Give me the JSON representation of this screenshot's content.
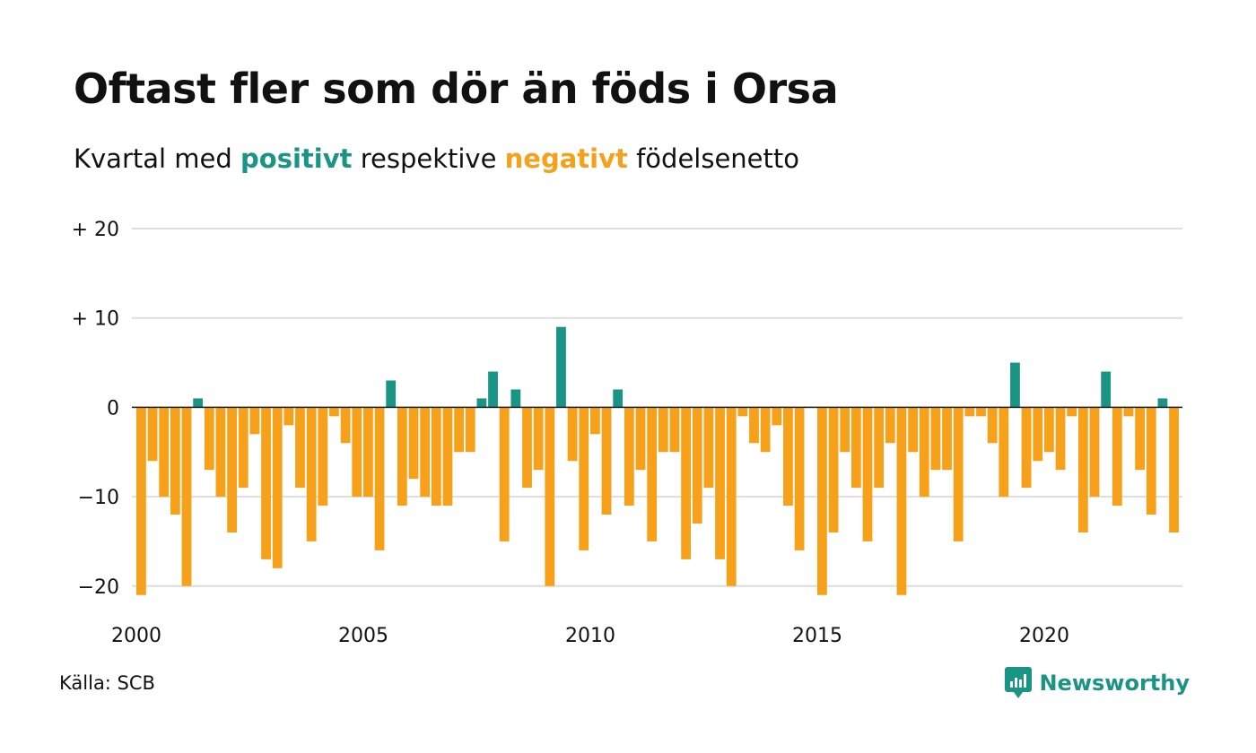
{
  "title": "Oftast fler som dör än föds i Orsa",
  "subtitle": {
    "before": "Kvartal med",
    "positive_word": "positivt",
    "middle": "respektive",
    "negative_word": "negativt",
    "after": "födelsenetto"
  },
  "source": "Källa: SCB",
  "brand": "Newsworthy",
  "colors": {
    "positive": "#1a9485",
    "negative": "#f7a11a",
    "grid": "#dddddd"
  },
  "chart_data": {
    "type": "bar",
    "x_start": 2000,
    "x_end": 2023,
    "x_ticks": [
      {
        "value": 2000,
        "label": "2000"
      },
      {
        "value": 2005,
        "label": "2005"
      },
      {
        "value": 2010,
        "label": "2010"
      },
      {
        "value": 2015,
        "label": "2015"
      },
      {
        "value": 2020,
        "label": "2020"
      }
    ],
    "y_ticks": [
      {
        "value": 20,
        "label": "+ 20"
      },
      {
        "value": 10,
        "label": "+ 10"
      },
      {
        "value": 0,
        "label": "0"
      },
      {
        "value": -10,
        "label": "−10"
      },
      {
        "value": -20,
        "label": "−20"
      }
    ],
    "ylim": [
      -23,
      20
    ],
    "grid": true,
    "series": [
      {
        "values": [
          -21,
          -6,
          -10,
          -12,
          -20,
          1,
          -7,
          -10,
          -14,
          -9,
          -3,
          -17,
          -18,
          -2,
          -9,
          -15,
          -11,
          -1,
          -4,
          -10,
          -10,
          -16,
          3,
          -11,
          -8,
          -10,
          -11,
          -11,
          -5,
          -5,
          1,
          4,
          -15,
          2,
          -9,
          -7,
          -20,
          9,
          -6,
          -16,
          -3,
          -12,
          2,
          -11,
          -7,
          -15,
          -5,
          -5,
          -17,
          -13,
          -9,
          -17,
          -20,
          -1,
          -4,
          -5,
          -2,
          -11,
          -16,
          0,
          -21,
          -14,
          -5,
          -9,
          -15,
          -9,
          -4,
          -21,
          -5,
          -10,
          -7,
          -7,
          -15,
          -1,
          -1,
          -4,
          -10,
          5,
          -9,
          -6,
          -5,
          -7,
          -1,
          -14,
          -10,
          4,
          -11,
          -1,
          -7,
          -12,
          1,
          -14
        ]
      }
    ]
  }
}
